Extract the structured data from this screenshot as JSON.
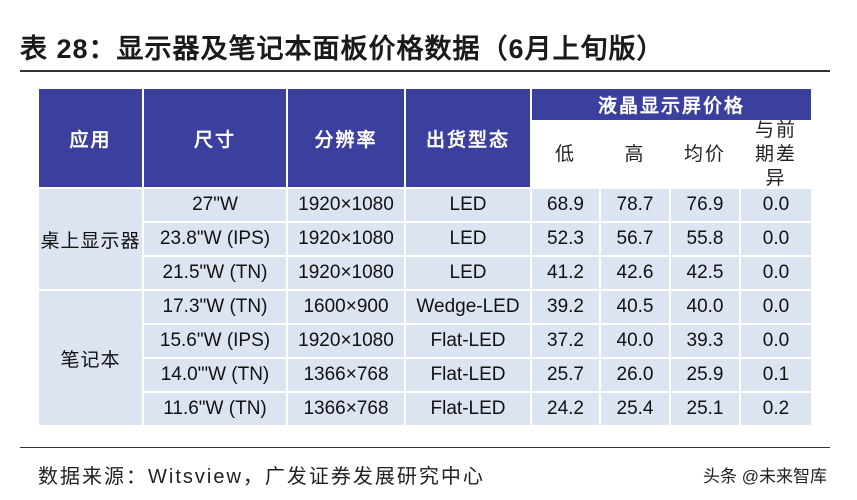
{
  "header": {
    "label": "表 28：",
    "title": "显示器及笔记本面板价格数据（6月上旬版）"
  },
  "table": {
    "columns": [
      "应用",
      "尺寸",
      "分辨率",
      "出货型态"
    ],
    "group_header": "液晶显示屏价格",
    "price_columns": [
      "低",
      "高",
      "均价",
      "与前期差异"
    ],
    "groups": [
      {
        "label": "桌上显示器",
        "rows": [
          [
            "27\"W",
            "1920×1080",
            "LED",
            "68.9",
            "78.7",
            "76.9",
            "0.0"
          ],
          [
            "23.8\"W (IPS)",
            "1920×1080",
            "LED",
            "52.3",
            "56.7",
            "55.8",
            "0.0"
          ],
          [
            "21.5\"W (TN)",
            "1920×1080",
            "LED",
            "41.2",
            "42.6",
            "42.5",
            "0.0"
          ]
        ]
      },
      {
        "label": "笔记本",
        "rows": [
          [
            "17.3\"W (TN)",
            "1600×900",
            "Wedge-LED",
            "39.2",
            "40.5",
            "40.0",
            "0.0"
          ],
          [
            "15.6\"W (IPS)",
            "1920×1080",
            "Flat-LED",
            "37.2",
            "40.0",
            "39.3",
            "0.0"
          ],
          [
            "14.0\"'W (TN)",
            "1366×768",
            "Flat-LED",
            "25.7",
            "26.0",
            "25.9",
            "0.1"
          ],
          [
            "11.6\"W (TN)",
            "1366×768",
            "Flat-LED",
            "24.2",
            "25.4",
            "25.1",
            "0.2"
          ]
        ]
      }
    ]
  },
  "source": "数据来源：Witsview，广发证券发展研究中心",
  "watermark": "头条 @未来智库"
}
